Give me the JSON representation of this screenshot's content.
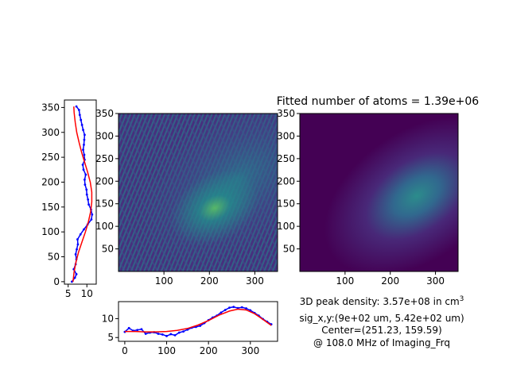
{
  "figure": {
    "title": "Fitted number of atoms = 1.39e+06",
    "density_prefix": "3D peak density: 3.57e+08 in cm",
    "density_exponent": "3",
    "sigma_line": "sig_x,y:(9e+02 um, 5.42e+02 um)",
    "center_line": "Center=(251.23, 159.59)",
    "freq_line": "@ 108.0 MHz of Imaging_Frq"
  },
  "colors": {
    "data": "#0000ff",
    "fit": "#ff0000",
    "viridis_dark": "#440154",
    "viridis_mid": "#3b528b",
    "viridis_teal": "#21918c",
    "viridis_green": "#5ec962",
    "viridis_yellow": "#fde725"
  },
  "chart_data": [
    {
      "id": "y_profile",
      "type": "line",
      "orientation": "vertical",
      "xlim": [
        4,
        12.5
      ],
      "ylim": [
        -5,
        365
      ],
      "xticks": [
        5,
        10
      ],
      "yticks": [
        0,
        50,
        100,
        150,
        200,
        250,
        300,
        350
      ],
      "series": [
        {
          "role": "data",
          "color": "#0000ff",
          "points": [
            [
              6.0,
              0
            ],
            [
              6.8,
              8
            ],
            [
              7.2,
              15
            ],
            [
              6.5,
              25
            ],
            [
              7.0,
              35
            ],
            [
              7.2,
              45
            ],
            [
              7.0,
              55
            ],
            [
              7.3,
              65
            ],
            [
              7.6,
              75
            ],
            [
              7.5,
              85
            ],
            [
              8.3,
              95
            ],
            [
              9.2,
              105
            ],
            [
              10.2,
              115
            ],
            [
              11.2,
              125
            ],
            [
              11.4,
              135
            ],
            [
              11.1,
              145
            ],
            [
              10.5,
              155
            ],
            [
              10.3,
              165
            ],
            [
              10.0,
              175
            ],
            [
              9.9,
              185
            ],
            [
              9.5,
              195
            ],
            [
              9.4,
              205
            ],
            [
              9.7,
              215
            ],
            [
              9.1,
              225
            ],
            [
              8.9,
              235
            ],
            [
              9.4,
              245
            ],
            [
              9.3,
              255
            ],
            [
              9.0,
              265
            ],
            [
              9.2,
              275
            ],
            [
              9.3,
              285
            ],
            [
              9.4,
              295
            ],
            [
              9.0,
              305
            ],
            [
              8.7,
              315
            ],
            [
              8.4,
              325
            ],
            [
              8.1,
              335
            ],
            [
              7.9,
              345
            ],
            [
              7.2,
              352
            ]
          ]
        },
        {
          "role": "fit",
          "color": "#ff0000",
          "points": [
            [
              6.3,
              0
            ],
            [
              6.6,
              20
            ],
            [
              7.1,
              40
            ],
            [
              7.8,
              60
            ],
            [
              8.7,
              80
            ],
            [
              9.6,
              100
            ],
            [
              10.4,
              120
            ],
            [
              11.0,
              140
            ],
            [
              11.3,
              160
            ],
            [
              11.3,
              180
            ],
            [
              10.9,
              200
            ],
            [
              10.2,
              220
            ],
            [
              9.4,
              240
            ],
            [
              8.6,
              260
            ],
            [
              7.9,
              280
            ],
            [
              7.3,
              300
            ],
            [
              6.9,
              320
            ],
            [
              6.6,
              340
            ],
            [
              6.5,
              352
            ]
          ]
        }
      ]
    },
    {
      "id": "raw_image",
      "type": "heatmap",
      "xlim": [
        0,
        350
      ],
      "ylim": [
        0,
        350
      ],
      "xticks": [
        100,
        200,
        300
      ],
      "yticks": [
        50,
        100,
        150,
        200,
        250,
        300,
        350
      ],
      "colormap": "viridis",
      "bright_spot_center": [
        210,
        140
      ]
    },
    {
      "id": "fit_image",
      "type": "heatmap",
      "xlim": [
        0,
        350
      ],
      "ylim": [
        0,
        350
      ],
      "xticks": [
        100,
        200,
        300
      ],
      "yticks": [
        50,
        100,
        150,
        200,
        250,
        300,
        350
      ],
      "colormap": "viridis",
      "gaussian_center": [
        251.23,
        159.59
      ]
    },
    {
      "id": "x_profile",
      "type": "line",
      "xlim": [
        -15,
        365
      ],
      "ylim": [
        4,
        14.5
      ],
      "xticks": [
        0,
        100,
        200,
        300
      ],
      "yticks": [
        5,
        10
      ],
      "series": [
        {
          "role": "data",
          "color": "#0000ff",
          "points": [
            [
              0,
              6.5
            ],
            [
              10,
              7.5
            ],
            [
              20,
              6.8
            ],
            [
              30,
              7.0
            ],
            [
              40,
              7.2
            ],
            [
              50,
              6.0
            ],
            [
              60,
              6.3
            ],
            [
              70,
              6.4
            ],
            [
              80,
              6.0
            ],
            [
              90,
              5.8
            ],
            [
              100,
              5.4
            ],
            [
              110,
              5.9
            ],
            [
              120,
              5.6
            ],
            [
              130,
              6.3
            ],
            [
              140,
              6.6
            ],
            [
              150,
              7.1
            ],
            [
              160,
              7.6
            ],
            [
              170,
              7.8
            ],
            [
              180,
              8.1
            ],
            [
              190,
              8.8
            ],
            [
              200,
              9.6
            ],
            [
              210,
              10.3
            ],
            [
              220,
              10.8
            ],
            [
              230,
              11.6
            ],
            [
              240,
              12.3
            ],
            [
              250,
              12.9
            ],
            [
              260,
              13.1
            ],
            [
              270,
              12.8
            ],
            [
              280,
              13.0
            ],
            [
              290,
              12.7
            ],
            [
              300,
              12.2
            ],
            [
              310,
              11.5
            ],
            [
              320,
              10.8
            ],
            [
              330,
              9.9
            ],
            [
              340,
              9.2
            ],
            [
              350,
              8.5
            ]
          ]
        },
        {
          "role": "fit",
          "color": "#ff0000",
          "points": [
            [
              0,
              6.6
            ],
            [
              25,
              6.6
            ],
            [
              50,
              6.5
            ],
            [
              75,
              6.5
            ],
            [
              100,
              6.6
            ],
            [
              125,
              6.9
            ],
            [
              150,
              7.4
            ],
            [
              175,
              8.3
            ],
            [
              200,
              9.5
            ],
            [
              225,
              10.9
            ],
            [
              250,
              12.0
            ],
            [
              270,
              12.5
            ],
            [
              290,
              12.3
            ],
            [
              310,
              11.3
            ],
            [
              330,
              9.8
            ],
            [
              350,
              8.2
            ]
          ]
        }
      ]
    }
  ]
}
